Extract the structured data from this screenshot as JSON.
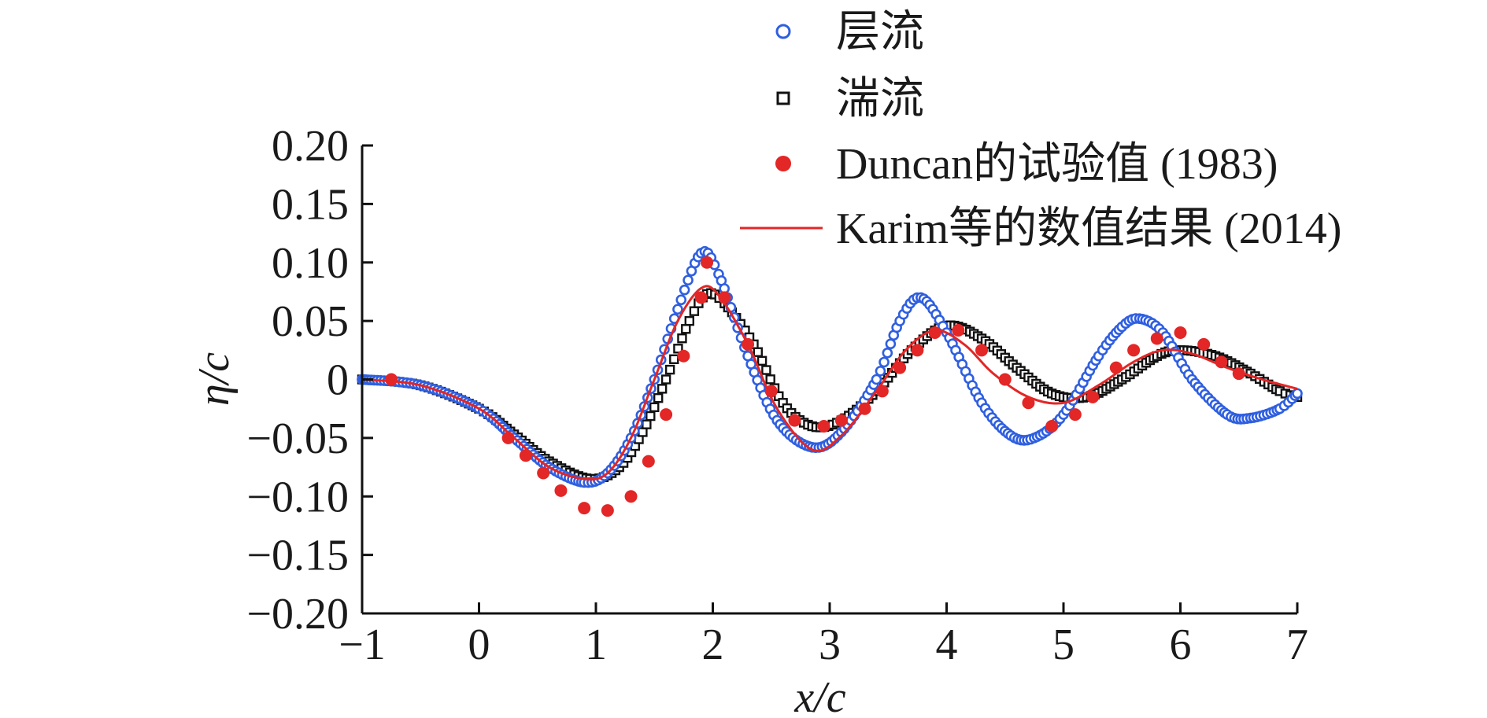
{
  "chart_data": {
    "type": "line",
    "xlabel": "x/c",
    "ylabel": "η/c",
    "xlim": [
      -1,
      7
    ],
    "ylim": [
      -0.2,
      0.2
    ],
    "xticks": [
      -1,
      0,
      1,
      2,
      3,
      4,
      5,
      6,
      7
    ],
    "xtick_labels": [
      "−1",
      "0",
      "1",
      "2",
      "3",
      "4",
      "5",
      "6",
      "7"
    ],
    "yticks": [
      0.2,
      0.15,
      0.1,
      0.05,
      0,
      -0.05,
      -0.1,
      -0.15,
      -0.2
    ],
    "ytick_labels": [
      "0.20",
      "0.15",
      "0.10",
      "0.05",
      "0",
      "−0.05",
      "−0.10",
      "−0.15",
      "−0.20"
    ],
    "grid": false,
    "legend_position": "top-right",
    "legend_count": 4,
    "series": [
      {
        "name": "层流",
        "marker": "open-circle",
        "color": "#2f5fe0",
        "points": [
          [
            -1,
            0
          ],
          [
            -0.5,
            -0.005
          ],
          [
            0,
            -0.025
          ],
          [
            0.3,
            -0.05
          ],
          [
            0.6,
            -0.075
          ],
          [
            0.9,
            -0.088
          ],
          [
            1.1,
            -0.08
          ],
          [
            1.3,
            -0.05
          ],
          [
            1.5,
            0.0
          ],
          [
            1.7,
            0.06
          ],
          [
            1.9,
            0.108
          ],
          [
            2.05,
            0.09
          ],
          [
            2.3,
            0.02
          ],
          [
            2.55,
            -0.035
          ],
          [
            2.85,
            -0.058
          ],
          [
            3.1,
            -0.045
          ],
          [
            3.4,
            0.0
          ],
          [
            3.6,
            0.05
          ],
          [
            3.78,
            0.07
          ],
          [
            4.0,
            0.04
          ],
          [
            4.3,
            -0.02
          ],
          [
            4.55,
            -0.048
          ],
          [
            4.75,
            -0.05
          ],
          [
            5.0,
            -0.03
          ],
          [
            5.3,
            0.02
          ],
          [
            5.5,
            0.045
          ],
          [
            5.65,
            0.052
          ],
          [
            5.85,
            0.04
          ],
          [
            6.1,
            0.0
          ],
          [
            6.4,
            -0.03
          ],
          [
            6.6,
            -0.033
          ],
          [
            6.85,
            -0.025
          ],
          [
            7.0,
            -0.012
          ]
        ]
      },
      {
        "name": "湍流",
        "marker": "open-square",
        "color": "#111111",
        "points": [
          [
            -1,
            0
          ],
          [
            -0.5,
            -0.005
          ],
          [
            0,
            -0.025
          ],
          [
            0.3,
            -0.047
          ],
          [
            0.6,
            -0.07
          ],
          [
            0.95,
            -0.085
          ],
          [
            1.2,
            -0.075
          ],
          [
            1.4,
            -0.045
          ],
          [
            1.6,
            0.0
          ],
          [
            1.8,
            0.05
          ],
          [
            1.95,
            0.073
          ],
          [
            2.1,
            0.065
          ],
          [
            2.35,
            0.03
          ],
          [
            2.6,
            -0.02
          ],
          [
            2.85,
            -0.04
          ],
          [
            3.1,
            -0.035
          ],
          [
            3.4,
            -0.01
          ],
          [
            3.7,
            0.025
          ],
          [
            4.0,
            0.046
          ],
          [
            4.3,
            0.035
          ],
          [
            4.6,
            0.01
          ],
          [
            4.9,
            -0.012
          ],
          [
            5.2,
            -0.015
          ],
          [
            5.5,
            0.0
          ],
          [
            5.8,
            0.02
          ],
          [
            6.0,
            0.025
          ],
          [
            6.3,
            0.02
          ],
          [
            6.6,
            0.005
          ],
          [
            6.85,
            -0.01
          ],
          [
            7.0,
            -0.015
          ]
        ]
      },
      {
        "name": "Duncan的试验值 (1983)",
        "marker": "filled-circle",
        "color": "#e32626",
        "points": [
          [
            -0.75,
            0.0
          ],
          [
            0.25,
            -0.05
          ],
          [
            0.4,
            -0.065
          ],
          [
            0.55,
            -0.08
          ],
          [
            0.7,
            -0.095
          ],
          [
            0.9,
            -0.11
          ],
          [
            1.1,
            -0.112
          ],
          [
            1.3,
            -0.1
          ],
          [
            1.45,
            -0.07
          ],
          [
            1.6,
            -0.03
          ],
          [
            1.75,
            0.02
          ],
          [
            1.9,
            0.07
          ],
          [
            1.95,
            0.1
          ],
          [
            2.1,
            0.07
          ],
          [
            2.3,
            0.03
          ],
          [
            2.5,
            -0.01
          ],
          [
            2.7,
            -0.035
          ],
          [
            2.95,
            -0.04
          ],
          [
            3.1,
            -0.035
          ],
          [
            3.3,
            -0.025
          ],
          [
            3.45,
            -0.01
          ],
          [
            3.6,
            0.01
          ],
          [
            3.75,
            0.025
          ],
          [
            3.9,
            0.04
          ],
          [
            4.1,
            0.042
          ],
          [
            4.3,
            0.025
          ],
          [
            4.5,
            0.0
          ],
          [
            4.7,
            -0.02
          ],
          [
            4.9,
            -0.04
          ],
          [
            5.1,
            -0.03
          ],
          [
            5.25,
            -0.015
          ],
          [
            5.45,
            0.01
          ],
          [
            5.6,
            0.025
          ],
          [
            5.8,
            0.035
          ],
          [
            6.0,
            0.04
          ],
          [
            6.2,
            0.03
          ],
          [
            6.35,
            0.015
          ],
          [
            6.5,
            0.005
          ]
        ]
      },
      {
        "name": "Karim等的数值结果 (2014)",
        "marker": "line",
        "color": "#e32626",
        "points": [
          [
            -1,
            0
          ],
          [
            -0.5,
            -0.005
          ],
          [
            0,
            -0.025
          ],
          [
            0.3,
            -0.05
          ],
          [
            0.6,
            -0.075
          ],
          [
            0.9,
            -0.085
          ],
          [
            1.1,
            -0.08
          ],
          [
            1.3,
            -0.05
          ],
          [
            1.5,
            0.0
          ],
          [
            1.7,
            0.05
          ],
          [
            1.9,
            0.078
          ],
          [
            2.05,
            0.072
          ],
          [
            2.3,
            0.03
          ],
          [
            2.55,
            -0.025
          ],
          [
            2.85,
            -0.06
          ],
          [
            3.1,
            -0.048
          ],
          [
            3.4,
            -0.01
          ],
          [
            3.65,
            0.025
          ],
          [
            3.9,
            0.042
          ],
          [
            4.15,
            0.03
          ],
          [
            4.4,
            0.005
          ],
          [
            4.7,
            -0.015
          ],
          [
            5.0,
            -0.02
          ],
          [
            5.3,
            -0.005
          ],
          [
            5.6,
            0.015
          ],
          [
            5.85,
            0.025
          ],
          [
            6.1,
            0.022
          ],
          [
            6.4,
            0.01
          ],
          [
            6.7,
            0.0
          ],
          [
            7.0,
            -0.008
          ]
        ]
      }
    ]
  }
}
